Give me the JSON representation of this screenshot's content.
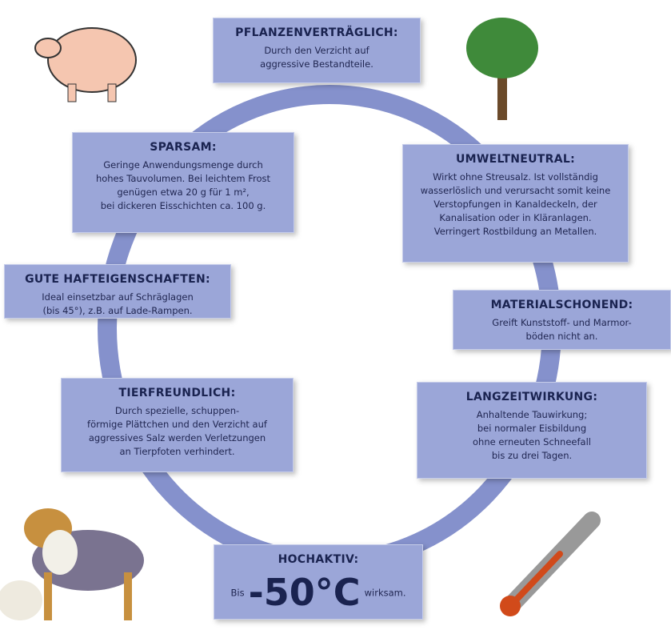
{
  "boxes": [
    {
      "title": "PFLANZENVERTRÄGLICH:",
      "lines": [
        "Durch den Verzicht auf",
        "aggressive Bestandteile."
      ]
    },
    {
      "title": "SPARSAM:",
      "lines": [
        "Geringe Anwendungsmenge durch",
        "hohes Tauvolumen. Bei leichtem Frost",
        "genügen etwa 20 g für 1 m²,",
        "bei dickeren Eisschichten ca. 100 g."
      ]
    },
    {
      "title": "UMWELTNEUTRAL:",
      "lines": [
        "Wirkt ohne Streusalz. Ist vollständig",
        "wasserlöslich und verursacht somit keine",
        "Verstopfungen in Kanaldeckeln, der",
        "Kanalisation oder in Kläranlagen.",
        "Verringert Rostbildung an Metallen."
      ]
    },
    {
      "title": "GUTE HAFTEIGENSCHAFTEN:",
      "lines": [
        "Ideal einsetzbar auf Schräglagen",
        "(bis 45°), z.B. auf Lade-Rampen."
      ]
    },
    {
      "title": "MATERIALSCHONEND:",
      "lines": [
        "Greift Kunststoff- und Marmor-",
        "böden nicht an."
      ]
    },
    {
      "title": "TIERFREUNDLICH:",
      "lines": [
        "Durch spezielle, schuppen-",
        "förmige Plättchen und den Verzicht auf",
        "aggressives Salz werden Verletzungen",
        "an Tierpfoten verhindert."
      ]
    },
    {
      "title": "LANGZEITWIRKUNG:",
      "lines": [
        "Anhaltende Tauwirkung;",
        "bei normaler Eisbildung",
        "ohne erneuten Schneefall",
        "bis zu drei Tagen."
      ]
    }
  ],
  "hochaktiv": {
    "title": "HOCHAKTIV:",
    "prefix": "Bis",
    "value": "-50°C",
    "suffix": "wirksam."
  }
}
